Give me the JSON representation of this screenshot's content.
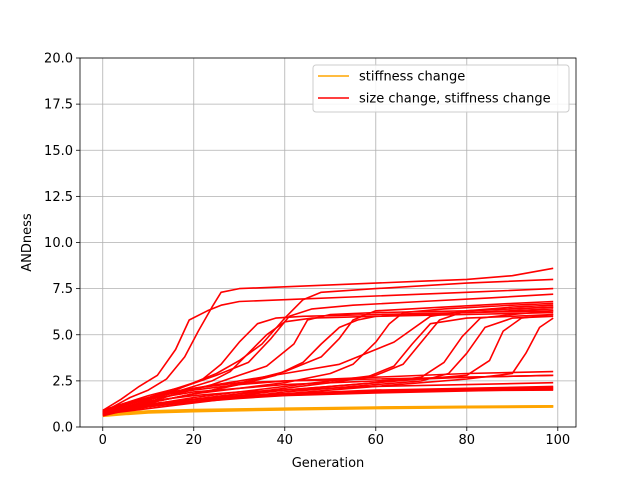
{
  "chart_data": {
    "type": "line",
    "title": "",
    "xlabel": "Generation",
    "ylabel": "ANDness",
    "xlim": [
      -5,
      104
    ],
    "ylim": [
      0,
      20
    ],
    "xticks": [
      0,
      20,
      40,
      60,
      80,
      100
    ],
    "xtick_labels": [
      "0",
      "20",
      "40",
      "60",
      "80",
      "100"
    ],
    "yticks": [
      0,
      2.5,
      5,
      7.5,
      10,
      12.5,
      15,
      17.5,
      20
    ],
    "ytick_labels": [
      "0.0",
      "2.5",
      "5.0",
      "7.5",
      "10.0",
      "12.5",
      "15.0",
      "17.5",
      "20.0"
    ],
    "grid": true,
    "legend_position": "top-right",
    "legend": [
      {
        "label": "stiffness change",
        "color": "#ffa500"
      },
      {
        "label": "size change, stiffness change",
        "color": "#ff0000"
      }
    ],
    "series": [
      {
        "group": "stiffness change",
        "color": "#ffa500",
        "x": [
          0,
          5,
          10,
          20,
          40,
          60,
          80,
          99
        ],
        "y": [
          0.6,
          0.7,
          0.78,
          0.85,
          0.95,
          1.02,
          1.07,
          1.1
        ]
      },
      {
        "group": "stiffness change",
        "color": "#ffa500",
        "x": [
          0,
          5,
          10,
          20,
          40,
          60,
          80,
          99
        ],
        "y": [
          0.7,
          0.78,
          0.85,
          0.92,
          1.0,
          1.06,
          1.1,
          1.13
        ]
      },
      {
        "group": "stiffness change",
        "color": "#ffa500",
        "x": [
          0,
          5,
          10,
          20,
          40,
          60,
          80,
          99
        ],
        "y": [
          0.65,
          0.74,
          0.8,
          0.88,
          0.97,
          1.04,
          1.08,
          1.12
        ]
      },
      {
        "group": "size change, stiffness change",
        "color": "#ff0000",
        "x": [
          0,
          3,
          6,
          10,
          14,
          18,
          21,
          24,
          26,
          30,
          40,
          50,
          60,
          70,
          80,
          90,
          99
        ],
        "y": [
          0.8,
          1.2,
          1.6,
          2.0,
          2.6,
          3.8,
          5.2,
          6.5,
          7.3,
          7.5,
          7.6,
          7.7,
          7.8,
          7.9,
          8.0,
          8.2,
          8.6
        ]
      },
      {
        "group": "size change, stiffness change",
        "color": "#ff0000",
        "x": [
          0,
          4,
          8,
          12,
          16,
          19,
          23,
          26,
          30,
          40,
          60,
          80,
          99
        ],
        "y": [
          0.9,
          1.5,
          2.2,
          2.8,
          4.2,
          5.8,
          6.3,
          6.6,
          6.8,
          6.9,
          7.1,
          7.3,
          7.5
        ]
      },
      {
        "group": "size change, stiffness change",
        "color": "#ff0000",
        "x": [
          0,
          5,
          10,
          15,
          20,
          25,
          30,
          35,
          40,
          44,
          48,
          60,
          80,
          99
        ],
        "y": [
          0.8,
          1.2,
          1.6,
          2.0,
          2.4,
          2.9,
          3.6,
          4.5,
          5.9,
          6.9,
          7.3,
          7.5,
          7.8,
          8.0
        ]
      },
      {
        "group": "size change, stiffness change",
        "color": "#ff0000",
        "x": [
          0,
          5,
          10,
          18,
          25,
          32,
          37,
          41,
          46,
          55,
          70,
          85,
          99
        ],
        "y": [
          0.9,
          1.3,
          1.7,
          2.2,
          2.8,
          3.5,
          4.8,
          6.0,
          6.4,
          6.6,
          6.8,
          7.0,
          7.2
        ]
      },
      {
        "group": "size change, stiffness change",
        "color": "#ff0000",
        "x": [
          0,
          6,
          12,
          18,
          24,
          30,
          36,
          42,
          45,
          50,
          60,
          80,
          99
        ],
        "y": [
          0.7,
          1.1,
          1.5,
          1.9,
          2.3,
          2.8,
          3.3,
          4.5,
          5.8,
          6.1,
          6.2,
          6.3,
          6.5
        ]
      },
      {
        "group": "size change, stiffness change",
        "color": "#ff0000",
        "x": [
          0,
          8,
          16,
          24,
          32,
          40,
          48,
          52,
          55,
          60,
          75,
          90,
          99
        ],
        "y": [
          0.8,
          1.2,
          1.6,
          2.0,
          2.5,
          3.0,
          3.8,
          4.8,
          5.8,
          6.3,
          6.5,
          6.7,
          6.8
        ]
      },
      {
        "group": "size change, stiffness change",
        "color": "#ff0000",
        "x": [
          0,
          10,
          20,
          30,
          40,
          50,
          55,
          60,
          63,
          66,
          75,
          90,
          99
        ],
        "y": [
          0.9,
          1.3,
          1.8,
          2.1,
          2.4,
          2.9,
          3.4,
          4.6,
          5.6,
          6.2,
          6.4,
          6.6,
          6.7
        ]
      },
      {
        "group": "size change, stiffness change",
        "color": "#ff0000",
        "x": [
          0,
          10,
          20,
          30,
          40,
          50,
          60,
          66,
          70,
          74,
          80,
          90,
          99
        ],
        "y": [
          0.8,
          1.2,
          1.6,
          1.9,
          2.2,
          2.5,
          2.8,
          3.4,
          4.6,
          5.8,
          6.3,
          6.5,
          6.6
        ]
      },
      {
        "group": "size change, stiffness change",
        "color": "#ff0000",
        "x": [
          0,
          10,
          20,
          30,
          40,
          50,
          60,
          70,
          75,
          79,
          83,
          90,
          99
        ],
        "y": [
          0.7,
          1.1,
          1.4,
          1.7,
          2.0,
          2.2,
          2.4,
          2.7,
          3.5,
          4.9,
          5.9,
          6.1,
          6.3
        ]
      },
      {
        "group": "size change, stiffness change",
        "color": "#ff0000",
        "x": [
          0,
          10,
          20,
          30,
          40,
          50,
          60,
          70,
          80,
          85,
          88,
          92,
          99
        ],
        "y": [
          0.8,
          1.2,
          1.5,
          1.8,
          2.0,
          2.2,
          2.4,
          2.6,
          2.8,
          3.6,
          5.2,
          5.9,
          6.1
        ]
      },
      {
        "group": "size change, stiffness change",
        "color": "#ff0000",
        "x": [
          0,
          10,
          20,
          30,
          40,
          50,
          60,
          70,
          80,
          90,
          93,
          96,
          99
        ],
        "y": [
          0.7,
          1.1,
          1.4,
          1.6,
          1.8,
          2.0,
          2.2,
          2.4,
          2.6,
          2.9,
          4.0,
          5.4,
          5.9
        ]
      },
      {
        "group": "size change, stiffness change",
        "color": "#ff0000",
        "x": [
          0,
          8,
          16,
          22,
          26,
          30,
          34,
          38,
          44,
          60,
          80,
          99
        ],
        "y": [
          0.9,
          1.4,
          2.0,
          2.6,
          3.4,
          4.6,
          5.6,
          5.9,
          6.0,
          6.1,
          6.2,
          6.3
        ]
      },
      {
        "group": "size change, stiffness change",
        "color": "#ff0000",
        "x": [
          0,
          8,
          16,
          24,
          28,
          32,
          36,
          40,
          46,
          60,
          80,
          99
        ],
        "y": [
          0.8,
          1.3,
          1.9,
          2.5,
          3.0,
          4.0,
          5.0,
          5.7,
          5.9,
          6.0,
          6.2,
          6.4
        ]
      },
      {
        "group": "size change, stiffness change",
        "color": "#ff0000",
        "x": [
          0,
          10,
          20,
          30,
          38,
          44,
          48,
          52,
          56,
          60,
          80,
          99
        ],
        "y": [
          0.8,
          1.3,
          1.8,
          2.3,
          2.8,
          3.5,
          4.5,
          5.4,
          5.8,
          6.0,
          6.1,
          6.2
        ]
      },
      {
        "group": "size change, stiffness change",
        "color": "#ff0000",
        "x": [
          0,
          10,
          20,
          30,
          40,
          50,
          58,
          64,
          68,
          72,
          80,
          90,
          99
        ],
        "y": [
          0.7,
          1.1,
          1.5,
          1.8,
          2.1,
          2.4,
          2.7,
          3.3,
          4.5,
          5.6,
          5.9,
          6.0,
          6.1
        ]
      },
      {
        "group": "size change, stiffness change",
        "color": "#ff0000",
        "x": [
          0,
          10,
          20,
          30,
          40,
          50,
          60,
          70,
          76,
          80,
          84,
          90,
          99
        ],
        "y": [
          0.7,
          1.0,
          1.3,
          1.6,
          1.9,
          2.1,
          2.3,
          2.5,
          2.9,
          4.0,
          5.4,
          5.9,
          6.0
        ]
      },
      {
        "group": "size change, stiffness change",
        "color": "#ff0000",
        "x": [
          0,
          5,
          10,
          15,
          20,
          30,
          40,
          60,
          80,
          99
        ],
        "y": [
          0.9,
          1.3,
          1.6,
          1.8,
          2.0,
          2.3,
          2.5,
          2.7,
          2.9,
          3.0
        ]
      },
      {
        "group": "size change, stiffness change",
        "color": "#ff0000",
        "x": [
          0,
          5,
          10,
          15,
          20,
          30,
          40,
          60,
          80,
          99
        ],
        "y": [
          0.8,
          1.2,
          1.5,
          1.7,
          1.9,
          2.1,
          2.3,
          2.5,
          2.7,
          2.8
        ]
      },
      {
        "group": "size change, stiffness change",
        "color": "#ff0000",
        "x": [
          0,
          5,
          10,
          20,
          30,
          40,
          60,
          80,
          99
        ],
        "y": [
          0.8,
          1.1,
          1.4,
          1.7,
          1.9,
          2.0,
          2.2,
          2.3,
          2.4
        ]
      },
      {
        "group": "size change, stiffness change",
        "color": "#ff0000",
        "x": [
          0,
          5,
          10,
          20,
          30,
          40,
          60,
          80,
          99
        ],
        "y": [
          0.7,
          1.0,
          1.2,
          1.5,
          1.7,
          1.8,
          2.0,
          2.1,
          2.2
        ]
      },
      {
        "group": "size change, stiffness change",
        "color": "#ff0000",
        "x": [
          0,
          5,
          10,
          20,
          30,
          40,
          60,
          80,
          99
        ],
        "y": [
          0.7,
          0.95,
          1.15,
          1.4,
          1.6,
          1.75,
          1.9,
          2.0,
          2.1
        ]
      },
      {
        "group": "size change, stiffness change",
        "color": "#ff0000",
        "x": [
          0,
          5,
          10,
          20,
          30,
          40,
          60,
          80,
          99
        ],
        "y": [
          0.6,
          0.9,
          1.1,
          1.35,
          1.55,
          1.7,
          1.85,
          1.95,
          2.05
        ]
      },
      {
        "group": "size change, stiffness change",
        "color": "#ff0000",
        "x": [
          0,
          5,
          10,
          20,
          30,
          40,
          60,
          80,
          99
        ],
        "y": [
          0.65,
          0.92,
          1.12,
          1.38,
          1.58,
          1.72,
          1.88,
          1.98,
          2.0
        ]
      },
      {
        "group": "size change, stiffness change",
        "color": "#ff0000",
        "x": [
          0,
          5,
          10,
          20,
          30,
          40,
          60,
          80,
          99
        ],
        "y": [
          0.75,
          1.0,
          1.25,
          1.5,
          1.65,
          1.8,
          1.95,
          2.05,
          2.15
        ]
      },
      {
        "group": "size change, stiffness change",
        "color": "#ff0000",
        "x": [
          0,
          6,
          12,
          20,
          30,
          40,
          52,
          64,
          72,
          80,
          99
        ],
        "y": [
          0.9,
          1.3,
          1.7,
          2.1,
          2.5,
          2.9,
          3.4,
          4.6,
          6.0,
          6.3,
          6.5
        ]
      },
      {
        "group": "size change, stiffness change",
        "color": "#ff0000",
        "x": [
          0,
          5,
          10,
          15,
          20,
          30,
          40,
          60,
          80,
          99
        ],
        "y": [
          0.8,
          1.2,
          1.5,
          1.9,
          2.1,
          2.4,
          2.5,
          2.6,
          2.7,
          2.8
        ]
      }
    ]
  }
}
